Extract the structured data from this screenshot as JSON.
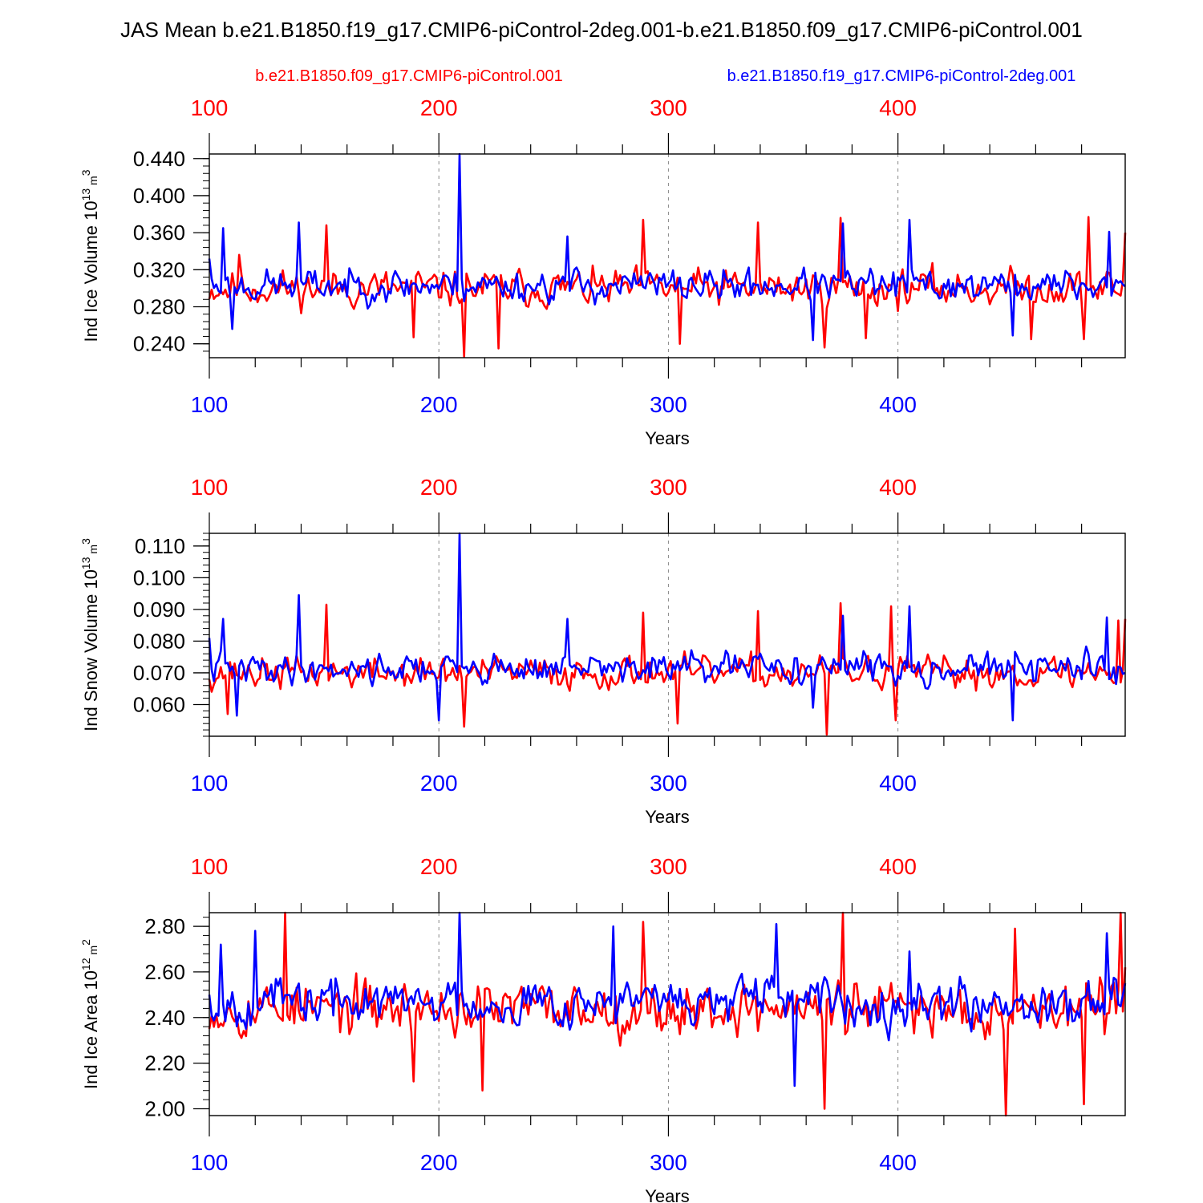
{
  "figure": {
    "title": "JAS Mean b.e21.B1850.f19_g17.CMIP6-piControl-2deg.001-b.e21.B1850.f09_g17.CMIP6-piControl.001",
    "legend": {
      "red_label": "b.e21.B1850.f09_g17.CMIP6-piControl.001",
      "blue_label": "b.e21.B1850.f19_g17.CMIP6-piControl-2deg.001"
    },
    "colors": {
      "red": "#ff0000",
      "blue": "#0000ff",
      "axis": "#000000",
      "grid": "#888888"
    }
  },
  "chart_data": [
    {
      "type": "line",
      "title": "",
      "ylabel": "Ind Ice Volume 10^13 m^3",
      "ylabel_parts": {
        "main": "Ind Ice Volume 10",
        "exp1": "13",
        "mid": " m",
        "exp2": "3"
      },
      "xlabel": "Years",
      "xlim": [
        100,
        499
      ],
      "ylim": [
        0.225,
        0.445
      ],
      "x_ticks": [
        100,
        200,
        300,
        400
      ],
      "y_ticks": [
        0.44,
        0.4,
        0.36,
        0.32,
        0.28,
        0.24
      ],
      "y_tick_labels": [
        "0.440",
        "0.400",
        "0.360",
        "0.320",
        "0.280",
        "0.240"
      ],
      "y_minor_step": 0.008,
      "x_top_labels": [
        "100",
        "200",
        "300",
        "400"
      ],
      "x_bottom_labels": [
        "100",
        "200",
        "300",
        "400"
      ],
      "series": [
        {
          "name": "b.e21.B1850.f09_g17.CMIP6-piControl.001",
          "color": "red",
          "base": 0.3,
          "amp": 0.034,
          "seed": 11,
          "events": [
            [
              113,
              0.336
            ],
            [
              151,
              0.368
            ],
            [
              189,
              0.247
            ],
            [
              211,
              0.226
            ],
            [
              226,
              0.235
            ],
            [
              289,
              0.374
            ],
            [
              305,
              0.24
            ],
            [
              339,
              0.371
            ],
            [
              368,
              0.236
            ],
            [
              375,
              0.376
            ],
            [
              386,
              0.246
            ],
            [
              458,
              0.245
            ],
            [
              481,
              0.245
            ],
            [
              483,
              0.377
            ],
            [
              499,
              0.36
            ]
          ]
        },
        {
          "name": "b.e21.B1850.f19_g17.CMIP6-piControl-2deg.001",
          "color": "blue",
          "base": 0.303,
          "amp": 0.03,
          "seed": 23,
          "events": [
            [
              100,
              0.332
            ],
            [
              106,
              0.365
            ],
            [
              110,
              0.256
            ],
            [
              139,
              0.371
            ],
            [
              209,
              0.448
            ],
            [
              210,
              0.31
            ],
            [
              256,
              0.356
            ],
            [
              363,
              0.244
            ],
            [
              376,
              0.37
            ],
            [
              405,
              0.374
            ],
            [
              450,
              0.249
            ],
            [
              492,
              0.361
            ],
            [
              499,
              0.302
            ]
          ]
        }
      ]
    },
    {
      "type": "line",
      "title": "",
      "ylabel": "Ind Snow Volume 10^13 m^3",
      "ylabel_parts": {
        "main": "Ind Snow Volume 10",
        "exp1": "13",
        "mid": " m",
        "exp2": "3"
      },
      "xlabel": "Years",
      "xlim": [
        100,
        499
      ],
      "ylim": [
        0.05,
        0.114
      ],
      "x_ticks": [
        100,
        200,
        300,
        400
      ],
      "y_ticks": [
        0.11,
        0.1,
        0.09,
        0.08,
        0.07,
        0.06
      ],
      "y_tick_labels": [
        "0.110",
        "0.100",
        "0.090",
        "0.080",
        "0.070",
        "0.060"
      ],
      "y_minor_step": 0.002,
      "x_top_labels": [
        "100",
        "200",
        "300",
        "400"
      ],
      "x_bottom_labels": [
        "100",
        "200",
        "300",
        "400"
      ],
      "series": [
        {
          "name": "b.e21.B1850.f09_g17.CMIP6-piControl.001",
          "color": "red",
          "base": 0.07,
          "amp": 0.0085,
          "seed": 37,
          "events": [
            [
              108,
              0.057
            ],
            [
              151,
              0.0915
            ],
            [
              211,
              0.053
            ],
            [
              289,
              0.089
            ],
            [
              304,
              0.054
            ],
            [
              339,
              0.0895
            ],
            [
              369,
              0.0505
            ],
            [
              375,
              0.092
            ],
            [
              397,
              0.091
            ],
            [
              399,
              0.055
            ],
            [
              496,
              0.0865
            ],
            [
              499,
              0.087
            ]
          ]
        },
        {
          "name": "b.e21.B1850.f19_g17.CMIP6-piControl-2deg.001",
          "color": "blue",
          "base": 0.0715,
          "amp": 0.008,
          "seed": 41,
          "events": [
            [
              100,
              0.081
            ],
            [
              106,
              0.087
            ],
            [
              112,
              0.0565
            ],
            [
              139,
              0.0945
            ],
            [
              200,
              0.055
            ],
            [
              209,
              0.116
            ],
            [
              210,
              0.072
            ],
            [
              256,
              0.087
            ],
            [
              363,
              0.059
            ],
            [
              376,
              0.088
            ],
            [
              405,
              0.091
            ],
            [
              450,
              0.055
            ],
            [
              491,
              0.0875
            ],
            [
              499,
              0.07
            ]
          ]
        }
      ]
    },
    {
      "type": "line",
      "title": "",
      "ylabel": "Ind Ice Area 10^12 m^2",
      "ylabel_parts": {
        "main": "Ind Ice Area 10",
        "exp1": "12",
        "mid": " m",
        "exp2": "2"
      },
      "xlabel": "Years",
      "xlim": [
        100,
        499
      ],
      "ylim": [
        1.97,
        2.86
      ],
      "x_ticks": [
        100,
        200,
        300,
        400
      ],
      "y_ticks": [
        2.8,
        2.6,
        2.4,
        2.2,
        2.0
      ],
      "y_tick_labels": [
        "2.80",
        "2.60",
        "2.40",
        "2.20",
        "2.00"
      ],
      "y_minor_step": 0.04,
      "x_top_labels": [
        "100",
        "200",
        "300",
        "400"
      ],
      "x_bottom_labels": [
        "100",
        "200",
        "300",
        "400"
      ],
      "series": [
        {
          "name": "b.e21.B1850.f09_g17.CMIP6-piControl.001",
          "color": "red",
          "base": 2.44,
          "amp": 0.2,
          "seed": 53,
          "events": [
            [
              100,
              2.35
            ],
            [
              133,
              2.86
            ],
            [
              189,
              2.12
            ],
            [
              219,
              2.08
            ],
            [
              289,
              2.82
            ],
            [
              368,
              2.0
            ],
            [
              376,
              2.86
            ],
            [
              447,
              1.97
            ],
            [
              451,
              2.79
            ],
            [
              481,
              2.02
            ],
            [
              497,
              2.86
            ],
            [
              499,
              2.62
            ]
          ]
        },
        {
          "name": "b.e21.B1850.f19_g17.CMIP6-piControl-2deg.001",
          "color": "blue",
          "base": 2.47,
          "amp": 0.17,
          "seed": 67,
          "events": [
            [
              100,
              2.5
            ],
            [
              105,
              2.72
            ],
            [
              120,
              2.78
            ],
            [
              209,
              2.86
            ],
            [
              276,
              2.8
            ],
            [
              347,
              2.81
            ],
            [
              355,
              2.1
            ],
            [
              405,
              2.69
            ],
            [
              491,
              2.77
            ],
            [
              499,
              2.55
            ]
          ]
        }
      ]
    }
  ]
}
